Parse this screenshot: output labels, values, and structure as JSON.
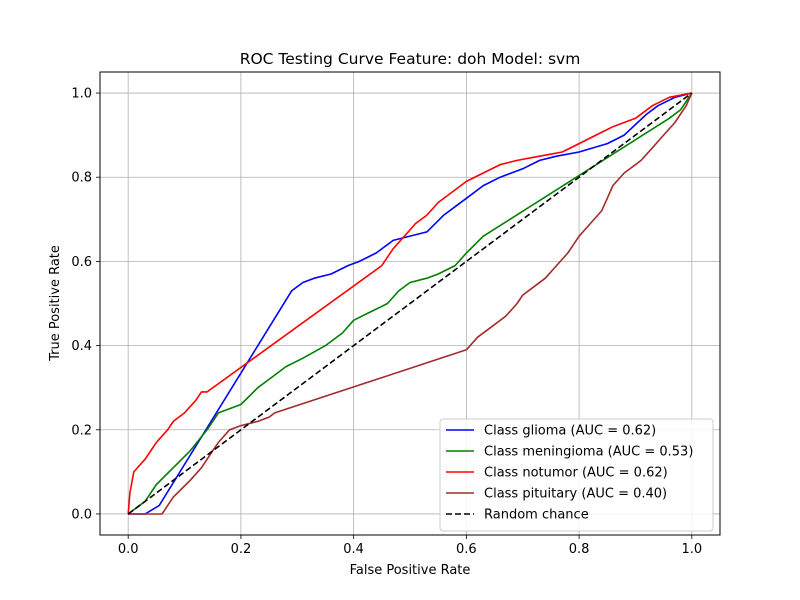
{
  "chart_data": {
    "type": "line",
    "title": "ROC Testing Curve Feature: doh Model: svm",
    "xlabel": "False Positive Rate",
    "ylabel": "True Positive Rate",
    "xlim": [
      -0.05,
      1.05
    ],
    "ylim": [
      -0.05,
      1.05
    ],
    "xticks": [
      0.0,
      0.2,
      0.4,
      0.6,
      0.8,
      1.0
    ],
    "yticks": [
      0.0,
      0.2,
      0.4,
      0.6,
      0.8,
      1.0
    ],
    "xtick_labels": [
      "0.0",
      "0.2",
      "0.4",
      "0.6",
      "0.8",
      "1.0"
    ],
    "ytick_labels": [
      "0.0",
      "0.2",
      "0.4",
      "0.6",
      "0.8",
      "1.0"
    ],
    "grid": true,
    "legend_position": "lower right",
    "series": [
      {
        "name": "Class glioma (AUC = 0.62)",
        "color": "#0000ff",
        "dash": "solid",
        "x": [
          0.0,
          0.03,
          0.055,
          0.29,
          0.31,
          0.33,
          0.36,
          0.39,
          0.41,
          0.44,
          0.46,
          0.47,
          0.53,
          0.56,
          0.58,
          0.6,
          0.63,
          0.66,
          0.7,
          0.73,
          0.76,
          0.8,
          0.85,
          0.88,
          0.92,
          0.94,
          0.97,
          1.0
        ],
        "y": [
          0.0,
          0.0,
          0.02,
          0.53,
          0.55,
          0.56,
          0.57,
          0.59,
          0.6,
          0.62,
          0.64,
          0.65,
          0.67,
          0.71,
          0.73,
          0.75,
          0.78,
          0.8,
          0.82,
          0.84,
          0.85,
          0.86,
          0.88,
          0.9,
          0.95,
          0.97,
          0.99,
          1.0
        ]
      },
      {
        "name": "Class meningioma (AUC = 0.53)",
        "color": "#008000",
        "dash": "solid",
        "x": [
          0.0,
          0.03,
          0.05,
          0.08,
          0.11,
          0.14,
          0.16,
          0.2,
          0.23,
          0.26,
          0.28,
          0.31,
          0.35,
          0.38,
          0.4,
          0.43,
          0.46,
          0.48,
          0.5,
          0.53,
          0.55,
          0.58,
          0.6,
          0.63,
          0.96,
          0.98,
          1.0
        ],
        "y": [
          0.0,
          0.03,
          0.07,
          0.11,
          0.15,
          0.2,
          0.24,
          0.26,
          0.3,
          0.33,
          0.35,
          0.37,
          0.4,
          0.43,
          0.46,
          0.48,
          0.5,
          0.53,
          0.55,
          0.56,
          0.57,
          0.59,
          0.62,
          0.66,
          0.94,
          0.96,
          1.0
        ]
      },
      {
        "name": "Class notumor (AUC = 0.62)",
        "color": "#ff0000",
        "dash": "solid",
        "x": [
          0.0,
          0.003,
          0.01,
          0.03,
          0.05,
          0.07,
          0.08,
          0.1,
          0.12,
          0.13,
          0.14,
          0.45,
          0.47,
          0.49,
          0.51,
          0.53,
          0.55,
          0.58,
          0.6,
          0.63,
          0.66,
          0.69,
          0.73,
          0.77,
          0.8,
          0.83,
          0.86,
          0.9,
          0.93,
          0.96,
          1.0
        ],
        "y": [
          0.0,
          0.05,
          0.1,
          0.13,
          0.17,
          0.2,
          0.22,
          0.24,
          0.27,
          0.29,
          0.29,
          0.59,
          0.63,
          0.66,
          0.69,
          0.71,
          0.74,
          0.77,
          0.79,
          0.81,
          0.83,
          0.84,
          0.85,
          0.86,
          0.88,
          0.9,
          0.92,
          0.94,
          0.97,
          0.99,
          1.0
        ]
      },
      {
        "name": "Class pituitary (AUC = 0.40)",
        "color": "#a52a2a",
        "dash": "solid",
        "x": [
          0.0,
          0.06,
          0.08,
          0.11,
          0.13,
          0.15,
          0.16,
          0.18,
          0.2,
          0.23,
          0.25,
          0.26,
          0.6,
          0.62,
          0.64,
          0.67,
          0.69,
          0.7,
          0.72,
          0.74,
          0.76,
          0.78,
          0.79,
          0.8,
          0.82,
          0.84,
          0.85,
          0.86,
          0.88,
          0.91,
          0.93,
          0.95,
          0.97,
          0.99,
          1.0
        ],
        "y": [
          0.0,
          0.0,
          0.04,
          0.08,
          0.11,
          0.15,
          0.17,
          0.2,
          0.21,
          0.22,
          0.23,
          0.24,
          0.39,
          0.42,
          0.44,
          0.47,
          0.5,
          0.52,
          0.54,
          0.56,
          0.59,
          0.62,
          0.64,
          0.66,
          0.69,
          0.72,
          0.75,
          0.78,
          0.81,
          0.84,
          0.87,
          0.9,
          0.93,
          0.97,
          1.0
        ]
      },
      {
        "name": "Random chance",
        "color": "#000000",
        "dash": "dashed",
        "x": [
          0.0,
          1.0
        ],
        "y": [
          0.0,
          1.0
        ]
      }
    ]
  }
}
